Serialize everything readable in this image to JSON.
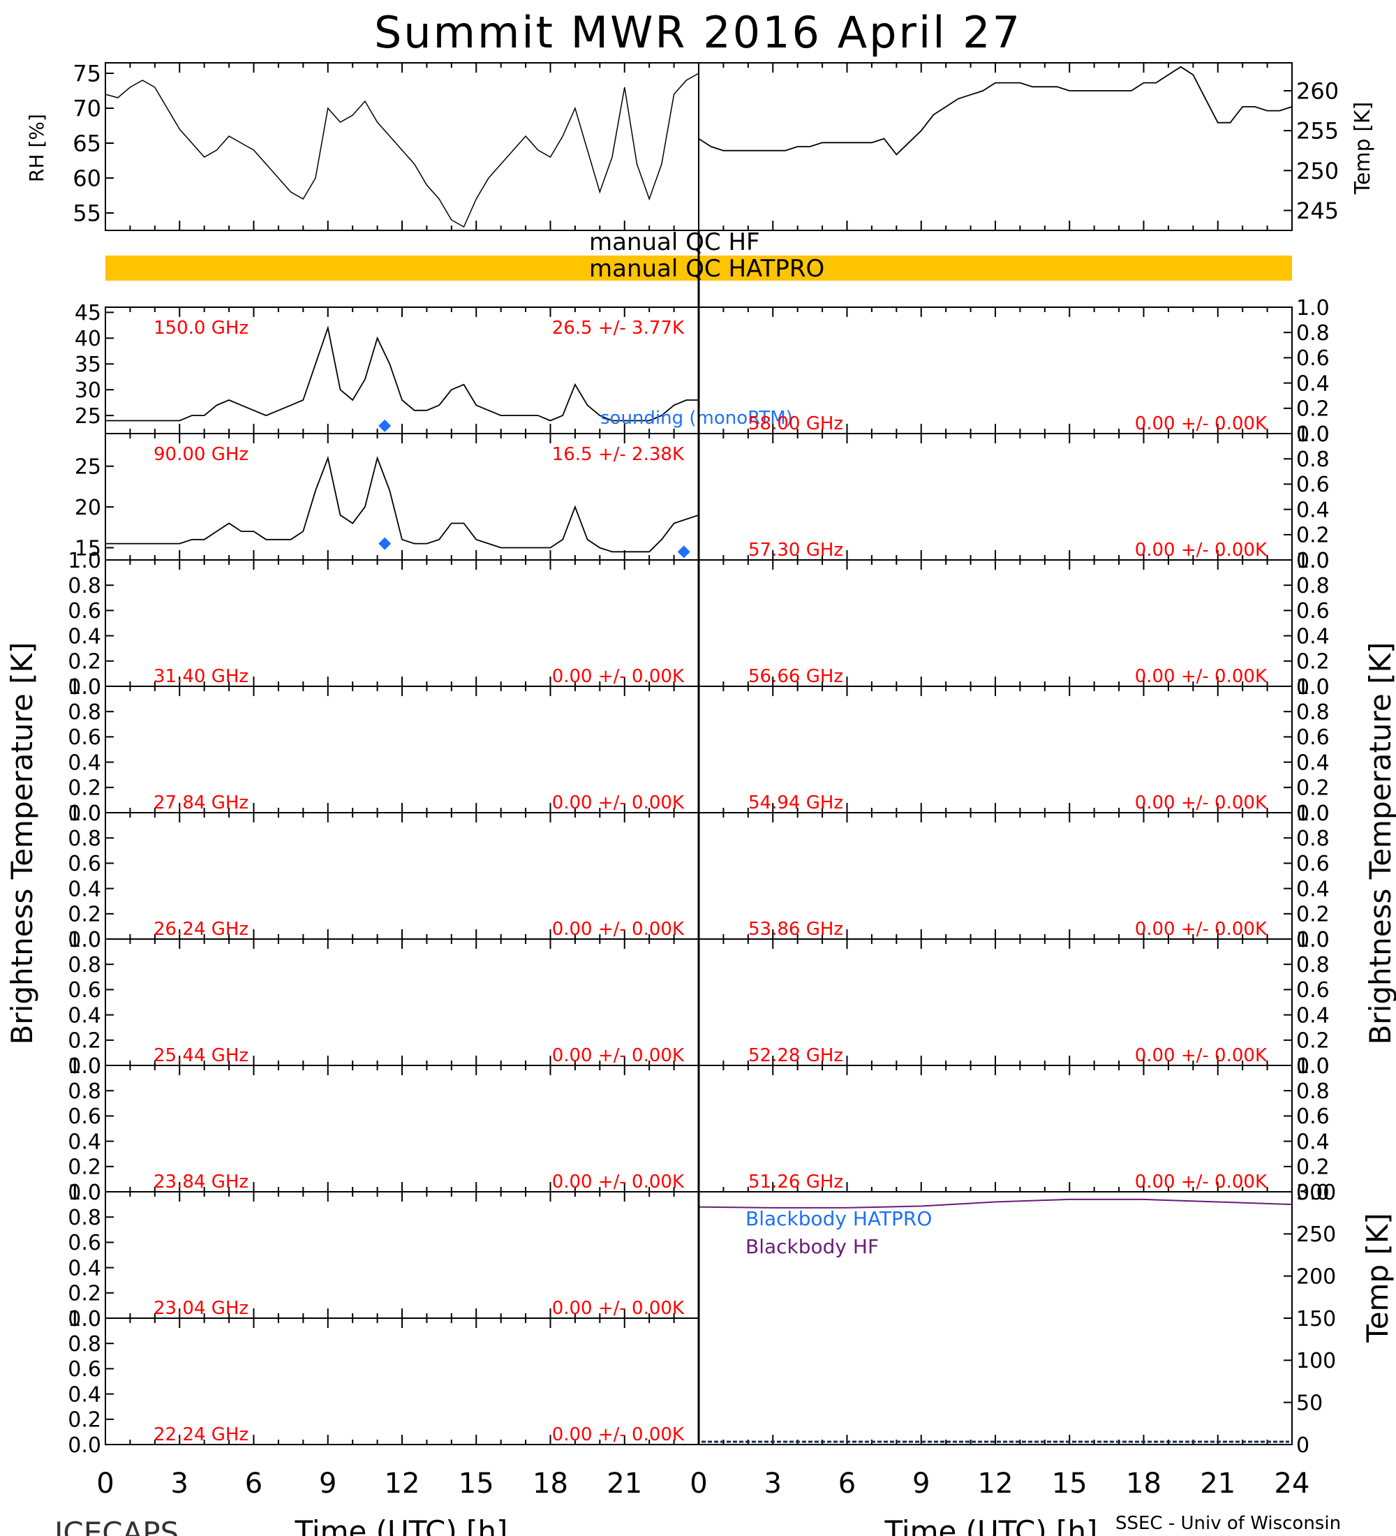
{
  "title": "Summit MWR 2016 April 27",
  "footer": {
    "left": "ICECAPS",
    "right": "SSEC - Univ of Wisconsin",
    "xlabel": "Time (UTC) [h]"
  },
  "xticks": [
    "0",
    "3",
    "6",
    "9",
    "12",
    "15",
    "18",
    "21",
    "24"
  ],
  "qc": {
    "hf_label": "manual QC HF",
    "hatpro_label": "manual QC HATPRO",
    "hatpro_color": "#FFC400"
  },
  "axis_labels": {
    "rh": "RH [%]",
    "temp": "Temp [K]",
    "tb": "Brightness Temperature [K]",
    "bb_temp": "Temp [K]"
  },
  "colors": {
    "label_red": "#FF0000",
    "sounding_blue": "#1E6FFF",
    "bb_hatpro": "#1E6FFF",
    "bb_hf": "#6A1B7A"
  },
  "chart_data": [
    {
      "type": "line",
      "panel": "met-rh",
      "ylabel": "RH [%]",
      "ylim": [
        52.5,
        76.5
      ],
      "yticks": [
        55,
        60,
        65,
        70,
        75
      ],
      "x": [
        0,
        0.5,
        1,
        1.5,
        2,
        2.5,
        3,
        3.5,
        4,
        4.5,
        5,
        5.5,
        6,
        6.5,
        7,
        7.5,
        8,
        8.5,
        9,
        9.5,
        10,
        10.5,
        11,
        11.5,
        12,
        12.5,
        13,
        13.5,
        14,
        14.5,
        15,
        15.5,
        16,
        16.5,
        17,
        17.5,
        18,
        18.5,
        19,
        19.5,
        20,
        20.5,
        21,
        21.5,
        22,
        22.5,
        23,
        23.5,
        24
      ],
      "values": [
        72,
        71.5,
        73,
        74,
        73,
        70,
        67,
        65,
        63,
        64,
        66,
        65,
        64,
        62,
        60,
        58,
        57,
        60,
        70,
        68,
        69,
        71,
        68,
        66,
        64,
        62,
        59,
        57,
        54,
        53,
        57,
        60,
        62,
        64,
        66,
        64,
        63,
        66,
        70,
        64,
        58,
        63,
        73,
        62,
        57,
        62,
        72,
        74,
        75
      ],
      "tick_labels": [
        "0",
        "3",
        "6",
        "9",
        "12",
        "15",
        "18",
        "21"
      ]
    },
    {
      "type": "line",
      "panel": "met-temp",
      "ylabel": "Temp [K]",
      "ylim": [
        242.5,
        263.5
      ],
      "yticks": [
        245,
        250,
        255,
        260
      ],
      "x": [
        0,
        0.5,
        1,
        1.5,
        2,
        2.5,
        3,
        3.5,
        4,
        4.5,
        5,
        5.5,
        6,
        6.5,
        7,
        7.5,
        8,
        8.5,
        9,
        9.5,
        10,
        10.5,
        11,
        11.5,
        12,
        12.5,
        13,
        13.5,
        14,
        14.5,
        15,
        15.5,
        16,
        16.5,
        17,
        17.5,
        18,
        18.5,
        19,
        19.5,
        20,
        20.5,
        21,
        21.5,
        22,
        22.5,
        23,
        23.5,
        24
      ],
      "values": [
        254,
        253,
        252.5,
        252.5,
        252.5,
        252.5,
        252.5,
        252.5,
        253,
        253,
        253.5,
        253.5,
        253.5,
        253.5,
        253.5,
        254,
        252,
        253.5,
        255,
        257,
        258,
        259,
        259.5,
        260,
        261,
        261,
        261,
        260.5,
        260.5,
        260.5,
        260,
        260,
        260,
        260,
        260,
        260,
        261,
        261,
        262,
        263,
        262,
        259,
        256,
        256,
        258,
        258,
        257.5,
        257.5,
        258
      ],
      "tick_labels": [
        "0",
        "3",
        "6",
        "9",
        "12",
        "15",
        "18",
        "21",
        "24"
      ]
    },
    {
      "type": "line",
      "panel": "tb-150",
      "channel": "150.0 GHz",
      "stats": "26.5 +/- 3.77K",
      "ylim": [
        21.5,
        46
      ],
      "yticks": [
        25,
        30,
        35,
        40,
        45
      ],
      "x": [
        0,
        0.5,
        1,
        1.5,
        2,
        2.5,
        3,
        3.5,
        4,
        4.5,
        5,
        5.5,
        6,
        6.5,
        7,
        7.5,
        8,
        8.5,
        9,
        9.5,
        10,
        10.5,
        11,
        11.5,
        12,
        12.5,
        13,
        13.5,
        14,
        14.5,
        15,
        15.5,
        16,
        16.5,
        17,
        17.5,
        18,
        18.5,
        19,
        19.5,
        20,
        20.5,
        21,
        21.5,
        22,
        22.5,
        23,
        23.5,
        24
      ],
      "values": [
        24,
        24,
        24,
        24,
        24,
        24,
        24,
        25,
        25,
        27,
        28,
        27,
        26,
        25,
        26,
        27,
        28,
        35,
        42,
        30,
        28,
        32,
        40,
        35,
        28,
        26,
        26,
        27,
        30,
        31,
        27,
        26,
        25,
        25,
        25,
        25,
        24,
        25,
        31,
        27,
        25,
        24,
        24,
        24,
        24,
        25,
        27,
        28,
        28
      ],
      "sounding_label": "sounding (monoRTM)",
      "sounding_points": [
        {
          "x": 11.3,
          "y": 23
        }
      ]
    },
    {
      "type": "line",
      "panel": "tb-90",
      "channel": "90.00 GHz",
      "stats": "16.5 +/- 2.38K",
      "ylim": [
        13.5,
        29
      ],
      "yticks": [
        15,
        20,
        25
      ],
      "x": [
        0,
        0.5,
        1,
        1.5,
        2,
        2.5,
        3,
        3.5,
        4,
        4.5,
        5,
        5.5,
        6,
        6.5,
        7,
        7.5,
        8,
        8.5,
        9,
        9.5,
        10,
        10.5,
        11,
        11.5,
        12,
        12.5,
        13,
        13.5,
        14,
        14.5,
        15,
        15.5,
        16,
        16.5,
        17,
        17.5,
        18,
        18.5,
        19,
        19.5,
        20,
        20.5,
        21,
        21.5,
        22,
        22.5,
        23,
        23.5,
        24
      ],
      "values": [
        15.5,
        15.5,
        15.5,
        15.5,
        15.5,
        15.5,
        15.5,
        16,
        16,
        17,
        18,
        17,
        17,
        16,
        16,
        16,
        17,
        22,
        26,
        19,
        18,
        20,
        26,
        22,
        16,
        15.5,
        15.5,
        16,
        18,
        18,
        16,
        15.5,
        15,
        15,
        15,
        15,
        15,
        16,
        20,
        16,
        15,
        14.5,
        14.5,
        14.5,
        14.5,
        16,
        18,
        18.5,
        19
      ],
      "sounding_points": [
        {
          "x": 11.3,
          "y": 15.5
        },
        {
          "x": 23.4,
          "y": 14.5
        }
      ]
    },
    {
      "type": "line",
      "panel": "empty-left",
      "channel": "31.40 GHz",
      "stats": "0.00 +/- 0.00K",
      "ylim": [
        0,
        1
      ],
      "values": []
    },
    {
      "type": "line",
      "panel": "empty-left",
      "channel": "27.84 GHz",
      "stats": "0.00 +/- 0.00K",
      "ylim": [
        0,
        1
      ],
      "values": []
    },
    {
      "type": "line",
      "panel": "empty-left",
      "channel": "26.24 GHz",
      "stats": "0.00 +/- 0.00K",
      "ylim": [
        0,
        1
      ],
      "values": []
    },
    {
      "type": "line",
      "panel": "empty-left",
      "channel": "25.44 GHz",
      "stats": "0.00 +/- 0.00K",
      "ylim": [
        0,
        1
      ],
      "values": []
    },
    {
      "type": "line",
      "panel": "empty-left",
      "channel": "23.84 GHz",
      "stats": "0.00 +/- 0.00K",
      "ylim": [
        0,
        1
      ],
      "values": []
    },
    {
      "type": "line",
      "panel": "empty-left",
      "channel": "23.04 GHz",
      "stats": "0.00 +/- 0.00K",
      "ylim": [
        0,
        1
      ],
      "values": []
    },
    {
      "type": "line",
      "panel": "empty-left",
      "channel": "22.24 GHz",
      "stats": "0.00 +/- 0.00K",
      "ylim": [
        0,
        1
      ],
      "values": []
    },
    {
      "type": "line",
      "panel": "empty-right",
      "channel": "58.00 GHz",
      "stats": "0.00 +/- 0.00K",
      "ylim": [
        0,
        1
      ],
      "values": []
    },
    {
      "type": "line",
      "panel": "empty-right",
      "channel": "57.30 GHz",
      "stats": "0.00 +/- 0.00K",
      "ylim": [
        0,
        1
      ],
      "values": []
    },
    {
      "type": "line",
      "panel": "empty-right",
      "channel": "56.66 GHz",
      "stats": "0.00 +/- 0.00K",
      "ylim": [
        0,
        1
      ],
      "values": []
    },
    {
      "type": "line",
      "panel": "empty-right",
      "channel": "54.94 GHz",
      "stats": "0.00 +/- 0.00K",
      "ylim": [
        0,
        1
      ],
      "values": []
    },
    {
      "type": "line",
      "panel": "empty-right",
      "channel": "53.86 GHz",
      "stats": "0.00 +/- 0.00K",
      "ylim": [
        0,
        1
      ],
      "values": []
    },
    {
      "type": "line",
      "panel": "empty-right",
      "channel": "52.28 GHz",
      "stats": "0.00 +/- 0.00K",
      "ylim": [
        0,
        1
      ],
      "values": []
    },
    {
      "type": "line",
      "panel": "empty-right",
      "channel": "51.26 GHz",
      "stats": "0.00 +/- 0.00K",
      "ylim": [
        0,
        1
      ],
      "values": []
    },
    {
      "type": "line",
      "panel": "blackbody",
      "ylabel": "Temp [K]",
      "ylim": [
        0,
        300
      ],
      "yticks": [
        0,
        50,
        100,
        150,
        200,
        250,
        300
      ],
      "series": [
        {
          "name": "Blackbody HATPRO",
          "values": []
        },
        {
          "name": "Blackbody HF",
          "x": [
            0,
            3,
            6,
            9,
            12,
            15,
            18,
            21,
            24
          ],
          "values": [
            282,
            281,
            281,
            283,
            288,
            291,
            291,
            288,
            285
          ]
        }
      ]
    }
  ]
}
